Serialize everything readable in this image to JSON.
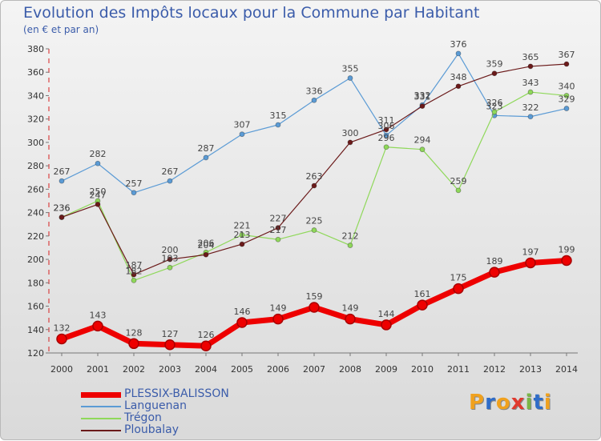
{
  "title": "Evolution des Impôts locaux pour la Commune par Habitant",
  "subtitle": "(en € et par an)",
  "logo_text": "Proxiti",
  "chart_data": {
    "type": "line",
    "x": [
      "2000",
      "2001",
      "2002",
      "2003",
      "2004",
      "2005",
      "2006",
      "2007",
      "2008",
      "2009",
      "2010",
      "2011",
      "2012",
      "2013",
      "2014"
    ],
    "ylim": [
      120,
      380
    ],
    "yticks": [
      120,
      140,
      160,
      180,
      200,
      220,
      240,
      260,
      280,
      300,
      320,
      340,
      360,
      380
    ],
    "grid": false,
    "legend_position": "bottom-left",
    "series": [
      {
        "name": "PLESSIX-BALISSON",
        "color": "#ee0000",
        "highlight": true,
        "values": [
          132,
          143,
          128,
          127,
          126,
          146,
          149,
          159,
          149,
          144,
          161,
          175,
          189,
          197,
          199
        ]
      },
      {
        "name": "Languenan",
        "color": "#5b9bd5",
        "values": [
          267,
          282,
          257,
          267,
          287,
          307,
          315,
          336,
          355,
          306,
          332,
          376,
          323,
          322,
          329
        ]
      },
      {
        "name": "Trégon",
        "color": "#8fd85a",
        "values": [
          236,
          250,
          182,
          193,
          206,
          221,
          217,
          225,
          212,
          296,
          294,
          259,
          326,
          343,
          340
        ]
      },
      {
        "name": "Ploubalay",
        "color": "#6b1a1a",
        "values": [
          236,
          247,
          187,
          200,
          204,
          213,
          227,
          263,
          300,
          311,
          331,
          348,
          359,
          365,
          367
        ]
      }
    ]
  }
}
